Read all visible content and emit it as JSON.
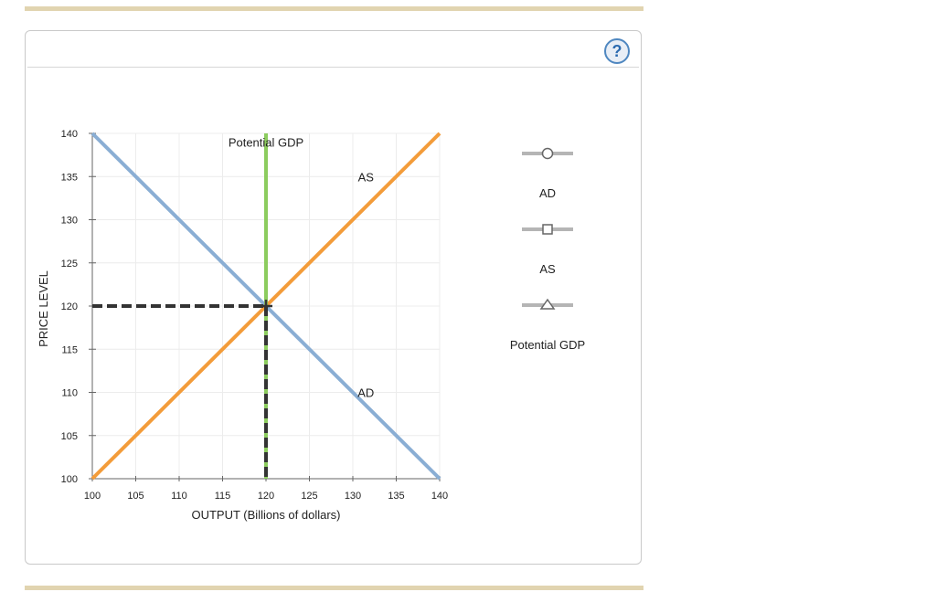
{
  "help": {
    "label": "?"
  },
  "chart_data": {
    "type": "line",
    "xlabel": "OUTPUT (Billions of dollars)",
    "ylabel": "PRICE LEVEL",
    "xlim": [
      100,
      140
    ],
    "ylim": [
      100,
      140
    ],
    "xticks": [
      100,
      105,
      110,
      115,
      120,
      125,
      130,
      135,
      140
    ],
    "yticks": [
      100,
      105,
      110,
      115,
      120,
      125,
      130,
      135,
      140
    ],
    "grid": true,
    "series": [
      {
        "name": "AD",
        "color": "#8aaed4",
        "points": [
          [
            100,
            140
          ],
          [
            140,
            100
          ]
        ],
        "label": "AD",
        "label_at": [
          131.5,
          110
        ]
      },
      {
        "name": "AS",
        "color": "#f39c3a",
        "points": [
          [
            100,
            100
          ],
          [
            140,
            140
          ]
        ],
        "label": "AS",
        "label_at": [
          131.5,
          135
        ]
      },
      {
        "name": "Potential GDP",
        "color": "#8ccc5e",
        "points": [
          [
            120,
            100
          ],
          [
            120,
            140
          ]
        ],
        "label": "Potential GDP",
        "label_at": [
          120,
          139
        ]
      }
    ],
    "equilibrium": {
      "x": 120,
      "y": 120,
      "color": "#333333"
    },
    "legend": {
      "placement": "right",
      "items": [
        {
          "label": "AD",
          "marker": "circle"
        },
        {
          "label": "AS",
          "marker": "square"
        },
        {
          "label": "Potential GDP",
          "marker": "triangle"
        }
      ]
    }
  }
}
